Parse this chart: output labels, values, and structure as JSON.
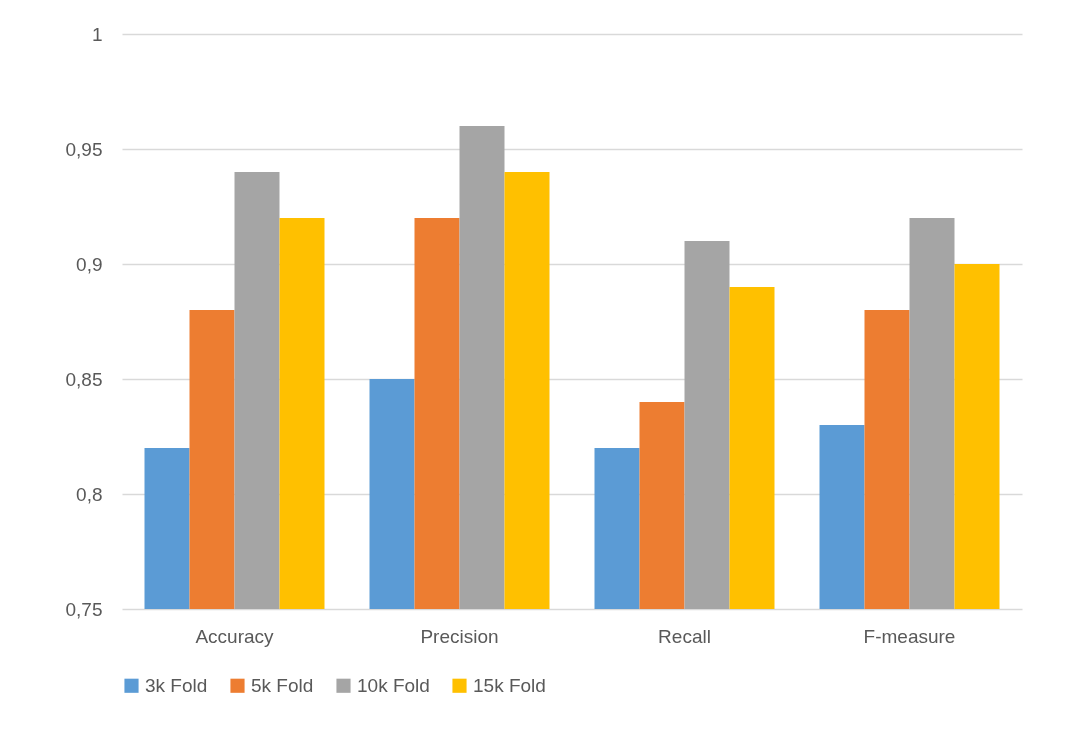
{
  "chart_data": {
    "type": "bar",
    "categories": [
      "Accuracy",
      "Precision",
      "Recall",
      "F-measure"
    ],
    "series": [
      {
        "name": "3k Fold",
        "color": "#5b9bd5",
        "values": [
          0.82,
          0.85,
          0.82,
          0.83
        ]
      },
      {
        "name": "5k Fold",
        "color": "#ed7d31",
        "values": [
          0.88,
          0.92,
          0.84,
          0.88
        ]
      },
      {
        "name": "10k Fold",
        "color": "#a5a5a5",
        "values": [
          0.94,
          0.96,
          0.91,
          0.92
        ]
      },
      {
        "name": "15k Fold",
        "color": "#ffc000",
        "values": [
          0.92,
          0.94,
          0.89,
          0.9
        ]
      }
    ],
    "ylim": [
      0.75,
      1
    ],
    "yticks": [
      {
        "value": 0.75,
        "label": "0,75"
      },
      {
        "value": 0.8,
        "label": "0,8"
      },
      {
        "value": 0.85,
        "label": "0,85"
      },
      {
        "value": 0.9,
        "label": "0,9"
      },
      {
        "value": 0.95,
        "label": "0,95"
      },
      {
        "value": 1,
        "label": "1"
      }
    ],
    "grid": "y",
    "legend": "bottom"
  }
}
